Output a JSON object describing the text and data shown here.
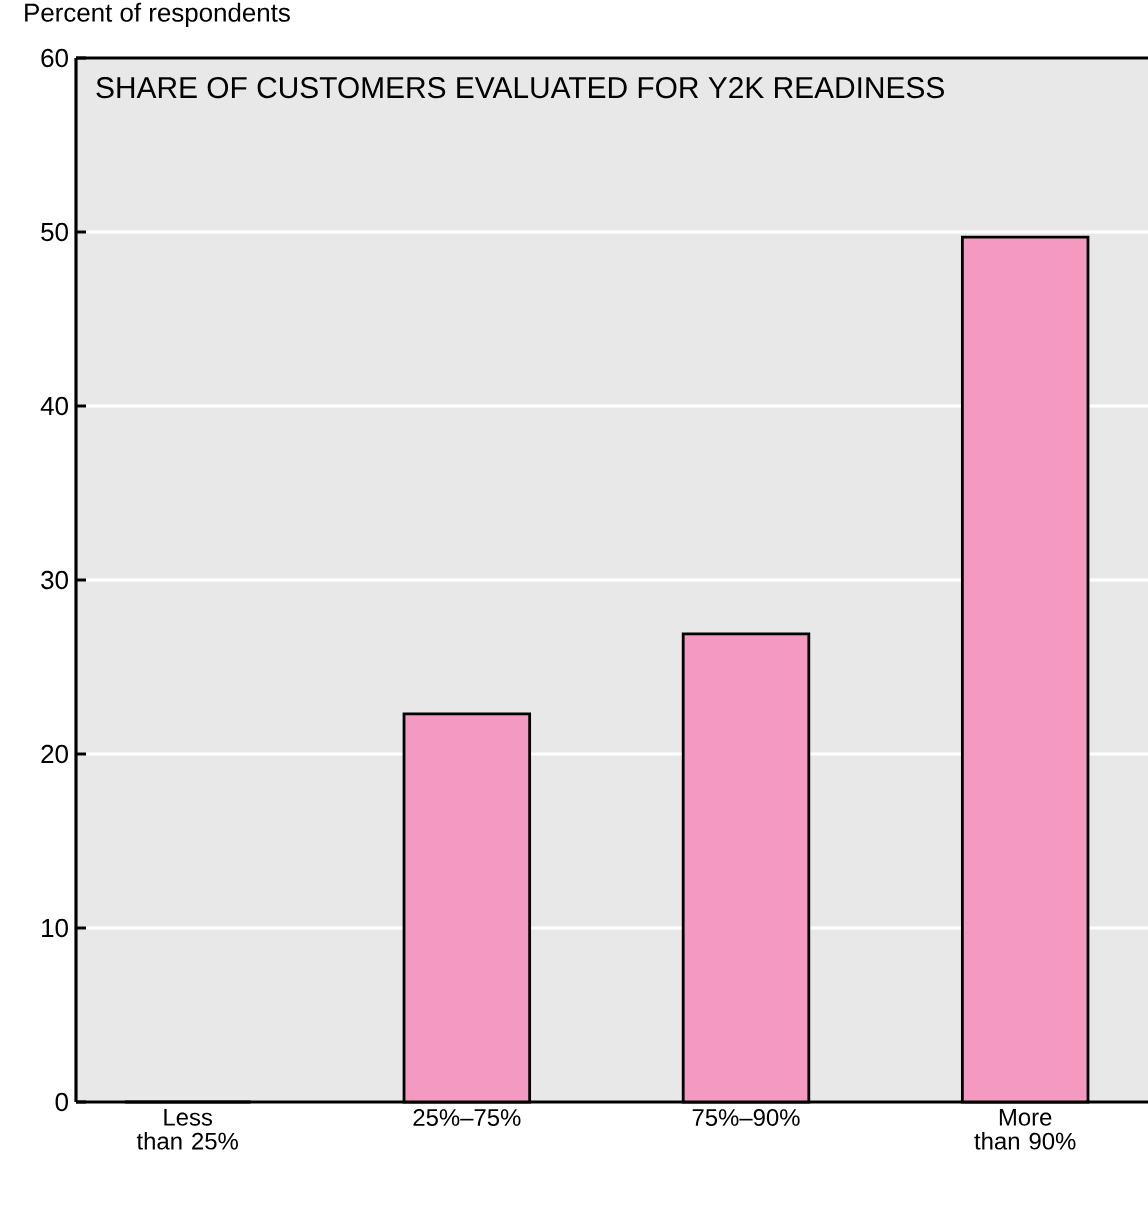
{
  "chart_data": {
    "type": "bar",
    "title": "SHARE OF CUSTOMERS EVALUATED FOR Y2K READINESS",
    "ylabel": "Percent of respondents",
    "categories": [
      "Less than 25%",
      "25%–75%",
      "75%–90%",
      "More than 90%"
    ],
    "values": [
      0,
      22.3,
      26.9,
      49.7
    ],
    "color": "#f49ac1",
    "ylim": [
      0,
      60
    ],
    "yticks": [
      0,
      10,
      20,
      30,
      40,
      50,
      60
    ],
    "grid": "y"
  }
}
